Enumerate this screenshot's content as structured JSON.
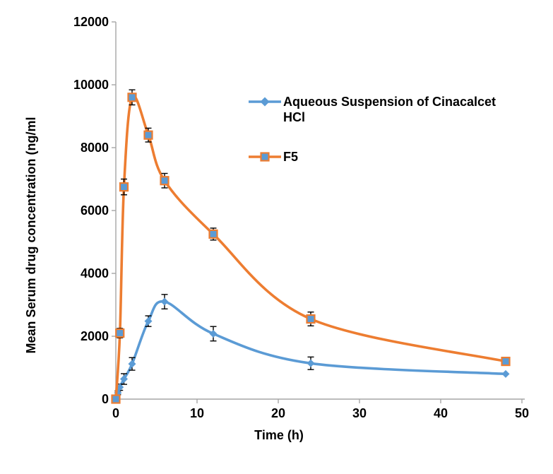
{
  "chart_data": {
    "type": "line",
    "title": "",
    "xlabel": "Time (h)",
    "ylabel": "Mean Serum drug concentration (ng/ml",
    "xlim": [
      0,
      50
    ],
    "ylim": [
      0,
      12000
    ],
    "xticks": [
      0,
      10,
      20,
      30,
      40,
      50
    ],
    "yticks": [
      0,
      2000,
      4000,
      6000,
      8000,
      10000,
      12000
    ],
    "grid": false,
    "line_style": "smooth",
    "error_bars": true,
    "legend_position": "upper-right-inside",
    "axis_color": "#A6A6A6",
    "text_color": "#000000",
    "error_bar_color": "#000000",
    "series": [
      {
        "name": "Aqueous Suspension of Cinacalcet HCl",
        "legend_lines": [
          "Aqueous Suspension of Cinacalcet",
          "HCl"
        ],
        "color": "#5B9BD5",
        "marker": "diamond",
        "marker_fill": "#5B9BD5",
        "marker_stroke": "#5B9BD5",
        "x": [
          0,
          0.25,
          0.5,
          1,
          2,
          4,
          6,
          12,
          24,
          48
        ],
        "y": [
          0,
          200,
          380,
          640,
          1120,
          2480,
          3100,
          2080,
          1140,
          800
        ],
        "yerr": [
          0,
          60,
          100,
          170,
          200,
          170,
          230,
          230,
          200,
          0
        ]
      },
      {
        "name": "F5",
        "legend_lines": [
          "F5"
        ],
        "color": "#ED7D31",
        "marker": "square",
        "marker_fill": "#5B9BD5",
        "marker_stroke": "#ED7D31",
        "x": [
          0,
          0.5,
          1,
          2,
          4,
          6,
          12,
          24,
          48
        ],
        "y": [
          0,
          2100,
          6750,
          9600,
          8400,
          6950,
          5250,
          2550,
          1200
        ],
        "yerr": [
          0,
          150,
          250,
          240,
          220,
          230,
          190,
          220,
          0
        ]
      }
    ]
  }
}
